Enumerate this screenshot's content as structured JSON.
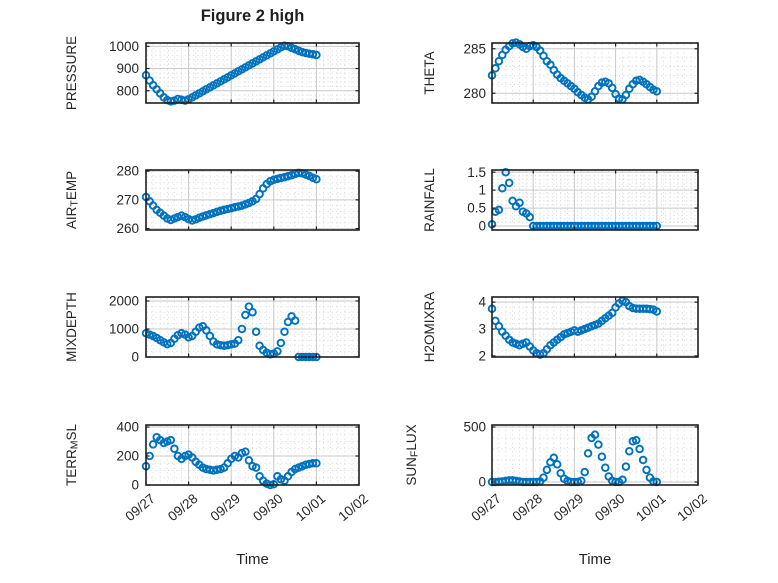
{
  "figure": {
    "title": "Figure 2 high",
    "xlabel": "Time",
    "marker": "o",
    "marker_color": "#0072BD",
    "axis_color": "#1f1f1f",
    "major_grid_color": "#c9c9c9",
    "minor_grid_color": "#d6d6d6",
    "text_color": "#262626",
    "x_tick_labels": [
      "09/27",
      "09/28",
      "09/29",
      "09/30",
      "10/01",
      "10/02"
    ],
    "x_range_hours": [
      0,
      120
    ],
    "x_major_step_hours": 24,
    "x_minor_step_hours": 4,
    "grid": "on",
    "minor_grid": "on"
  },
  "chart_data": [
    {
      "type": "scatter",
      "name": "PRESSURE",
      "ylabel_parts": [
        {
          "text": "PRESSURE"
        }
      ],
      "ylim": [
        745,
        1015
      ],
      "yticks": [
        800,
        900,
        1000
      ],
      "ytick_labels": [
        "800",
        "900",
        "1000"
      ],
      "yminor_step": 20,
      "x_start_hours": 0,
      "x_step_hours": 2,
      "values": [
        870,
        846,
        825,
        806,
        788,
        770,
        758,
        752,
        756,
        763,
        760,
        756,
        762,
        770,
        779,
        788,
        797,
        806,
        815,
        824,
        833,
        842,
        851,
        860,
        869,
        878,
        887,
        896,
        905,
        914,
        923,
        932,
        941,
        950,
        959,
        968,
        977,
        986,
        995,
        1003,
        1000,
        993,
        987,
        980,
        974,
        970,
        967,
        964,
        961
      ]
    },
    {
      "type": "scatter",
      "name": "THETA",
      "ylabel_parts": [
        {
          "text": "THETA"
        }
      ],
      "ylim": [
        278.9,
        285.65
      ],
      "yticks": [
        280,
        285
      ],
      "ytick_labels": [
        "280",
        "285"
      ],
      "yminor_step": 1,
      "x_start_hours": 0,
      "x_step_hours": 2,
      "values": [
        282,
        282.8,
        283.6,
        284.3,
        284.9,
        285.3,
        285.6,
        285.7,
        285.5,
        285.2,
        285,
        285.3,
        285.4,
        285.2,
        284.8,
        284.2,
        283.6,
        283.2,
        282.6,
        282.1,
        281.7,
        281.4,
        281.1,
        280.8,
        280.5,
        280.1,
        279.8,
        279.5,
        279.3,
        279.6,
        280.2,
        280.8,
        281.2,
        281.3,
        281.1,
        280.6,
        279.9,
        279.4,
        279.3,
        279.8,
        280.5,
        281,
        281.4,
        281.5,
        281.3,
        281,
        280.7,
        280.4,
        280.2
      ]
    },
    {
      "type": "scatter",
      "name": "AIR_TEMP",
      "ylabel_parts": [
        {
          "text": "AIR"
        },
        {
          "text": "T",
          "sub": true
        },
        {
          "text": "EMP"
        }
      ],
      "ylim": [
        259.5,
        280.4
      ],
      "yticks": [
        260,
        270,
        280
      ],
      "ytick_labels": [
        "260",
        "270",
        "280"
      ],
      "yminor_step": 2,
      "x_start_hours": 0,
      "x_step_hours": 2,
      "values": [
        271,
        269.5,
        268,
        266.5,
        265.5,
        264.5,
        263.5,
        263,
        263.5,
        264,
        264.5,
        264,
        263.3,
        262.8,
        263.2,
        263.8,
        264.2,
        264.6,
        265,
        265.4,
        265.8,
        266.2,
        266.5,
        266.8,
        267.1,
        267.4,
        267.7,
        268,
        268.4,
        268.9,
        269.5,
        270.3,
        272,
        274,
        275.5,
        276.5,
        277,
        277.3,
        277.6,
        277.9,
        278.2,
        278.6,
        279,
        279.4,
        279.2,
        278.8,
        278.3,
        277.7,
        277.2
      ]
    },
    {
      "type": "scatter",
      "name": "RAINFALL",
      "ylabel_parts": [
        {
          "text": "RAINFALL"
        }
      ],
      "ylim": [
        -0.11,
        1.56
      ],
      "yticks": [
        0,
        0.5,
        1,
        1.5
      ],
      "ytick_labels": [
        "0",
        "0.5",
        "1",
        "1.5"
      ],
      "yminor_step": 0.1,
      "x_start_hours": 0,
      "x_step_hours": 2,
      "values": [
        0.05,
        0.4,
        0.45,
        1.05,
        1.5,
        1.2,
        0.7,
        0.55,
        0.65,
        0.4,
        0.35,
        0.25,
        0,
        0,
        0,
        0,
        0,
        0,
        0,
        0,
        0,
        0,
        0,
        0,
        0,
        0,
        0,
        0,
        0,
        0,
        0,
        0,
        0,
        0,
        0,
        0,
        0,
        0,
        0,
        0,
        0,
        0,
        0,
        0,
        0,
        0,
        0,
        0,
        0
      ]
    },
    {
      "type": "scatter",
      "name": "MIXDEPTH",
      "ylabel_parts": [
        {
          "text": "MIXDEPTH"
        }
      ],
      "ylim": [
        0,
        2143
      ],
      "yticks": [
        0,
        1000,
        2000
      ],
      "ytick_labels": [
        "0",
        "1000",
        "2000"
      ],
      "yminor_step": 200,
      "x_start_hours": 0,
      "x_step_hours": 2,
      "values": [
        850,
        800,
        750,
        680,
        600,
        520,
        460,
        500,
        650,
        780,
        850,
        800,
        700,
        750,
        900,
        1050,
        1100,
        950,
        750,
        550,
        450,
        420,
        400,
        420,
        450,
        480,
        600,
        1000,
        1500,
        1800,
        1600,
        900,
        400,
        250,
        150,
        100,
        120,
        200,
        500,
        900,
        1250,
        1450,
        1300,
        0,
        0,
        0,
        0,
        0,
        0
      ]
    },
    {
      "type": "scatter",
      "name": "H2OMIXRA",
      "ylabel_parts": [
        {
          "text": "H2OMIXRA"
        }
      ],
      "ylim": [
        1.96,
        4.19
      ],
      "yticks": [
        2,
        3,
        4
      ],
      "ytick_labels": [
        "2",
        "3",
        "4"
      ],
      "yminor_step": 0.2,
      "x_start_hours": 0,
      "x_step_hours": 2,
      "values": [
        3.75,
        3.3,
        3.1,
        2.9,
        2.75,
        2.6,
        2.5,
        2.45,
        2.4,
        2.45,
        2.5,
        2.35,
        2.2,
        2.1,
        2.05,
        2.1,
        2.25,
        2.4,
        2.5,
        2.6,
        2.7,
        2.8,
        2.85,
        2.9,
        2.95,
        2.9,
        2.95,
        3,
        3.05,
        3.1,
        3.15,
        3.2,
        3.3,
        3.4,
        3.5,
        3.6,
        3.8,
        3.95,
        4.05,
        4,
        3.85,
        3.78,
        3.76,
        3.75,
        3.75,
        3.75,
        3.74,
        3.72,
        3.65
      ]
    },
    {
      "type": "scatter",
      "name": "TERR_MSL",
      "ylabel_parts": [
        {
          "text": "TERR"
        },
        {
          "text": "M",
          "sub": true
        },
        {
          "text": "SL"
        }
      ],
      "ylim": [
        0,
        414
      ],
      "yticks": [
        0,
        200,
        400
      ],
      "ytick_labels": [
        "0",
        "200",
        "400"
      ],
      "yminor_step": 50,
      "x_start_hours": 0,
      "x_step_hours": 2,
      "values": [
        130,
        200,
        280,
        330,
        310,
        290,
        300,
        310,
        250,
        200,
        180,
        200,
        210,
        190,
        160,
        140,
        120,
        110,
        105,
        100,
        105,
        110,
        120,
        150,
        180,
        200,
        190,
        220,
        230,
        170,
        130,
        120,
        60,
        30,
        10,
        0,
        5,
        60,
        40,
        30,
        60,
        90,
        110,
        120,
        130,
        140,
        145,
        150,
        150
      ]
    },
    {
      "type": "scatter",
      "name": "SUN_FLUX",
      "ylabel_parts": [
        {
          "text": "SUN"
        },
        {
          "text": "F",
          "sub": true
        },
        {
          "text": "LUX"
        }
      ],
      "ylim": [
        -27,
        518
      ],
      "yticks": [
        0,
        500
      ],
      "ytick_labels": [
        "0",
        "500"
      ],
      "yminor_step": 100,
      "x_start_hours": 0,
      "x_step_hours": 2,
      "values": [
        0,
        0,
        2,
        5,
        10,
        15,
        15,
        10,
        5,
        0,
        0,
        0,
        0,
        0,
        5,
        40,
        110,
        180,
        220,
        160,
        80,
        30,
        10,
        0,
        0,
        0,
        10,
        90,
        260,
        400,
        430,
        340,
        230,
        130,
        50,
        10,
        0,
        0,
        20,
        140,
        280,
        370,
        380,
        300,
        200,
        110,
        40,
        5,
        0
      ]
    }
  ]
}
